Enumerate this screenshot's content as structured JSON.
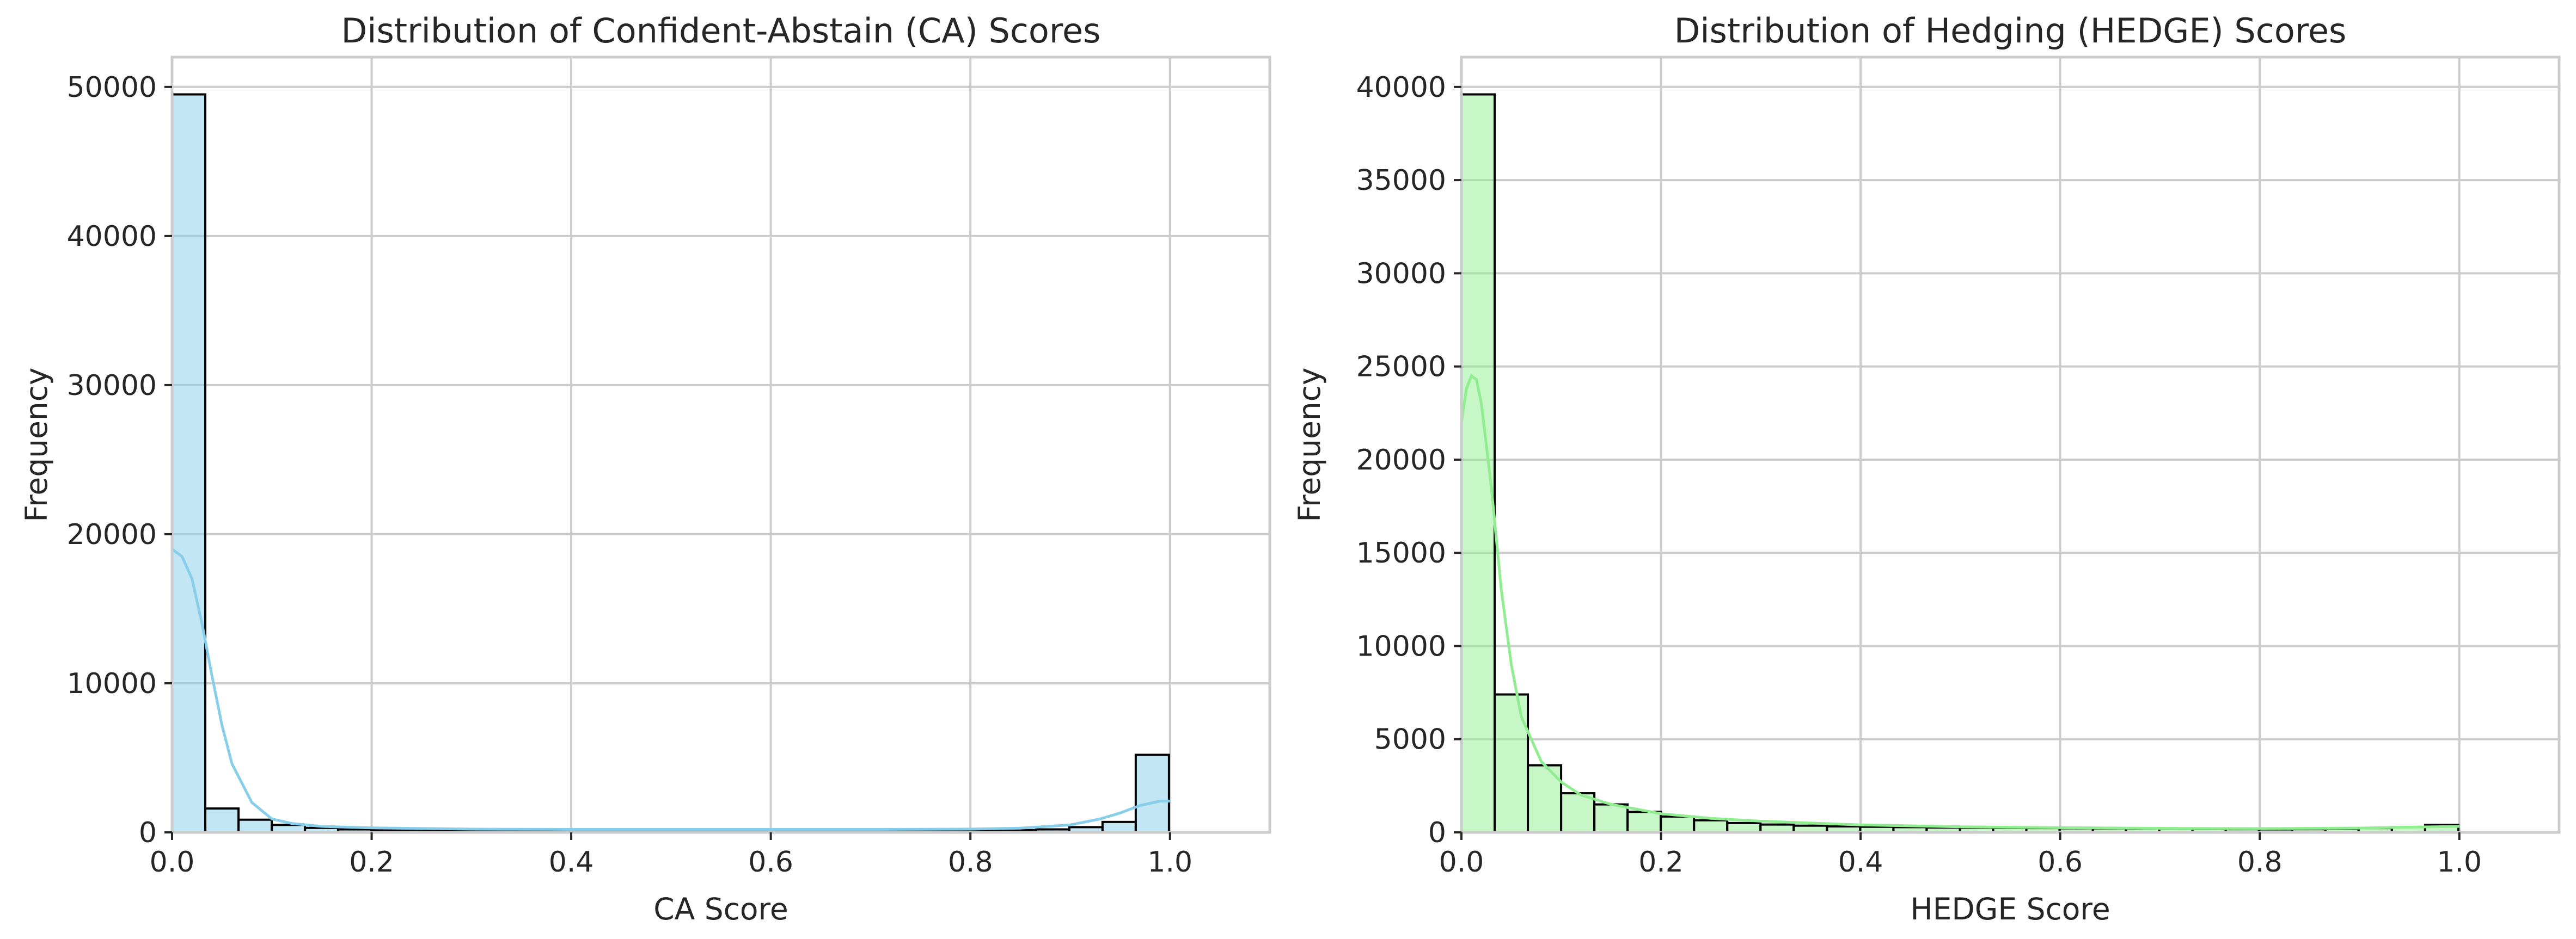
{
  "chart_data": [
    {
      "type": "bar",
      "title": "Distribution of Confident-Abstain (CA) Scores",
      "xlabel": "CA Score",
      "ylabel": "Frequency",
      "xlim": [
        0,
        1.1
      ],
      "ylim": [
        0,
        52000
      ],
      "xticks": [
        0.0,
        0.2,
        0.4,
        0.6,
        0.8,
        1.0
      ],
      "xtick_labels": [
        "0.0",
        "0.2",
        "0.4",
        "0.6",
        "0.8",
        "1.0"
      ],
      "yticks": [
        0,
        10000,
        20000,
        30000,
        40000,
        50000
      ],
      "ytick_labels": [
        "0",
        "10000",
        "20000",
        "30000",
        "40000",
        "50000"
      ],
      "grid": true,
      "bar_color": "#87CEEB",
      "bins": {
        "start": 0.0,
        "width": 0.0333,
        "counts": [
          49500,
          1600,
          850,
          500,
          300,
          200,
          150,
          120,
          100,
          90,
          80,
          70,
          70,
          60,
          60,
          60,
          60,
          60,
          60,
          60,
          60,
          70,
          80,
          90,
          110,
          150,
          200,
          350,
          700,
          5200
        ]
      },
      "kde": {
        "x": [
          0.0,
          0.01,
          0.02,
          0.03,
          0.04,
          0.05,
          0.06,
          0.08,
          0.1,
          0.12,
          0.15,
          0.2,
          0.3,
          0.4,
          0.5,
          0.6,
          0.7,
          0.8,
          0.85,
          0.9,
          0.93,
          0.95,
          0.97,
          0.99,
          1.0
        ],
        "y": [
          19000,
          18500,
          17000,
          14000,
          10500,
          7200,
          4600,
          2000,
          900,
          600,
          400,
          300,
          220,
          200,
          200,
          200,
          200,
          220,
          280,
          500,
          900,
          1300,
          1800,
          2100,
          2100
        ]
      }
    },
    {
      "type": "bar",
      "title": "Distribution of Hedging (HEDGE) Scores",
      "xlabel": "HEDGE Score",
      "ylabel": "Frequency",
      "xlim": [
        0,
        1.1
      ],
      "ylim": [
        0,
        41600
      ],
      "xticks": [
        0.0,
        0.2,
        0.4,
        0.6,
        0.8,
        1.0
      ],
      "xtick_labels": [
        "0.0",
        "0.2",
        "0.4",
        "0.6",
        "0.8",
        "1.0"
      ],
      "yticks": [
        0,
        5000,
        10000,
        15000,
        20000,
        25000,
        30000,
        35000,
        40000
      ],
      "ytick_labels": [
        "0",
        "5000",
        "10000",
        "15000",
        "20000",
        "25000",
        "30000",
        "35000",
        "40000"
      ],
      "grid": true,
      "bar_color": "#90EE90",
      "bins": {
        "start": 0.0,
        "width": 0.0333,
        "counts": [
          39600,
          7400,
          3600,
          2100,
          1500,
          1100,
          850,
          650,
          500,
          420,
          360,
          320,
          300,
          280,
          260,
          250,
          240,
          230,
          220,
          210,
          200,
          190,
          180,
          170,
          160,
          170,
          190,
          230,
          280,
          400
        ]
      },
      "kde": {
        "x": [
          0.0,
          0.005,
          0.01,
          0.015,
          0.02,
          0.03,
          0.04,
          0.05,
          0.06,
          0.08,
          0.1,
          0.12,
          0.15,
          0.2,
          0.25,
          0.3,
          0.4,
          0.5,
          0.6,
          0.7,
          0.8,
          0.9,
          0.95,
          1.0
        ],
        "y": [
          22000,
          23800,
          24500,
          24300,
          23000,
          18500,
          13000,
          9000,
          6200,
          3800,
          2700,
          2000,
          1500,
          1000,
          750,
          600,
          400,
          300,
          250,
          220,
          200,
          230,
          280,
          320
        ]
      }
    }
  ]
}
